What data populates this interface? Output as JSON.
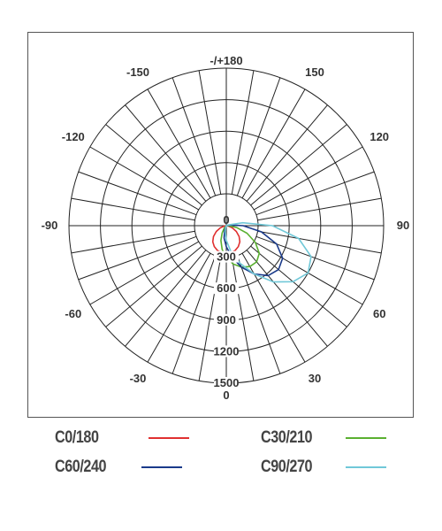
{
  "chart_data": {
    "type": "polar",
    "angle_labels": [
      {
        "text": "-/+180",
        "angle": 180
      },
      {
        "text": "150",
        "angle": 150
      },
      {
        "text": "-150",
        "angle": -150
      },
      {
        "text": "120",
        "angle": 120
      },
      {
        "text": "-120",
        "angle": -120
      },
      {
        "text": "90",
        "angle": 90
      },
      {
        "text": "-90",
        "angle": -90
      },
      {
        "text": "60",
        "angle": 60
      },
      {
        "text": "-60",
        "angle": -60
      },
      {
        "text": "30",
        "angle": 30
      },
      {
        "text": "-30",
        "angle": -30
      },
      {
        "text": "0",
        "angle": 0
      }
    ],
    "radial_ticks": [
      "0",
      "300",
      "600",
      "900",
      "1200",
      "1500"
    ],
    "radial_max": 1500,
    "angular_step_deg": 10,
    "series": [
      {
        "name": "C0/180",
        "color": "#e03030",
        "points": [
          [
            -90,
            0
          ],
          [
            -80,
            20
          ],
          [
            -70,
            60
          ],
          [
            -60,
            110
          ],
          [
            -50,
            160
          ],
          [
            -40,
            200
          ],
          [
            -30,
            230
          ],
          [
            -20,
            250
          ],
          [
            -10,
            260
          ],
          [
            0,
            265
          ],
          [
            10,
            260
          ],
          [
            20,
            250
          ],
          [
            30,
            230
          ],
          [
            40,
            200
          ],
          [
            50,
            160
          ],
          [
            60,
            110
          ],
          [
            70,
            60
          ],
          [
            80,
            20
          ],
          [
            90,
            0
          ]
        ]
      },
      {
        "name": "C30/210",
        "color": "#5ab030",
        "points": [
          [
            -60,
            0
          ],
          [
            -50,
            10
          ],
          [
            -40,
            30
          ],
          [
            -30,
            80
          ],
          [
            -20,
            150
          ],
          [
            -10,
            230
          ],
          [
            0,
            300
          ],
          [
            10,
            370
          ],
          [
            20,
            420
          ],
          [
            30,
            450
          ],
          [
            40,
            450
          ],
          [
            50,
            410
          ],
          [
            60,
            320
          ],
          [
            70,
            210
          ],
          [
            80,
            100
          ],
          [
            90,
            20
          ],
          [
            100,
            0
          ]
        ]
      },
      {
        "name": "C60/240",
        "color": "#1a3a8a",
        "points": [
          [
            -40,
            0
          ],
          [
            -30,
            10
          ],
          [
            -20,
            50
          ],
          [
            -10,
            120
          ],
          [
            0,
            200
          ],
          [
            10,
            300
          ],
          [
            20,
            420
          ],
          [
            30,
            530
          ],
          [
            40,
            620
          ],
          [
            50,
            650
          ],
          [
            60,
            620
          ],
          [
            70,
            510
          ],
          [
            80,
            340
          ],
          [
            90,
            160
          ],
          [
            100,
            40
          ],
          [
            110,
            0
          ]
        ]
      },
      {
        "name": "C90/270",
        "color": "#70c8d8",
        "points": [
          [
            -30,
            0
          ],
          [
            -20,
            20
          ],
          [
            -10,
            60
          ],
          [
            0,
            140
          ],
          [
            10,
            250
          ],
          [
            20,
            380
          ],
          [
            30,
            530
          ],
          [
            40,
            700
          ],
          [
            50,
            830
          ],
          [
            60,
            900
          ],
          [
            70,
            860
          ],
          [
            80,
            700
          ],
          [
            90,
            440
          ],
          [
            100,
            160
          ],
          [
            110,
            20
          ],
          [
            120,
            0
          ]
        ]
      }
    ]
  },
  "legend": [
    {
      "label": "C0/180",
      "color": "#e03030"
    },
    {
      "label": "C30/210",
      "color": "#5ab030"
    },
    {
      "label": "C60/240",
      "color": "#1a3a8a"
    },
    {
      "label": "C90/270",
      "color": "#70c8d8"
    }
  ]
}
